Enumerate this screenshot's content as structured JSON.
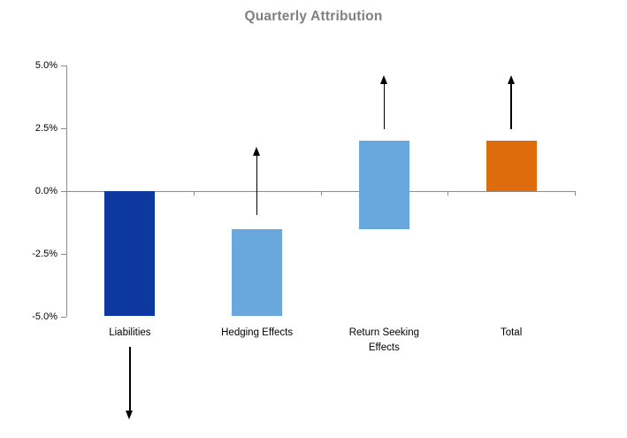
{
  "chart_data": {
    "type": "bar",
    "subtype": "waterfall-attribution",
    "title": "Quarterly Attribution",
    "xlabel": "",
    "ylabel": "",
    "ylim": [
      -5.0,
      5.0
    ],
    "grid": false,
    "legend": "none",
    "y_ticks": [
      {
        "label": "5.0%",
        "value": 5.0
      },
      {
        "label": "2.5%",
        "value": 2.5
      },
      {
        "label": "0.0%",
        "value": 0.0
      },
      {
        "label": "-2.5%",
        "value": -2.5
      },
      {
        "label": "-5.0%",
        "value": -5.0
      }
    ],
    "categories": [
      {
        "label": "Liabilities",
        "label_lines": [
          "Liabilities"
        ],
        "bar": {
          "from": 0.0,
          "to": -4.95,
          "color": "dark_blue",
          "clipped_at_axis_min": true
        },
        "arrow": {
          "dir": "down",
          "from": -6.2,
          "to": -9.1,
          "meaning": "bar continues below axis minimum"
        }
      },
      {
        "label": "Hedging Effects",
        "label_lines": [
          "Hedging Effects"
        ],
        "bar": {
          "from": -4.95,
          "to": -1.5,
          "color": "light_blue",
          "clipped_at_axis_min": true
        },
        "arrow": {
          "dir": "up",
          "from": -0.95,
          "to": 1.75,
          "meaning": "positive (upward) contribution"
        }
      },
      {
        "label": "Return Seeking Effects",
        "label_lines": [
          "Return Seeking",
          "Effects"
        ],
        "bar": {
          "from": -1.5,
          "to": 2.0,
          "color": "light_blue",
          "clipped_at_axis_min": false
        },
        "arrow": {
          "dir": "up",
          "from": 2.45,
          "to": 4.6,
          "meaning": "positive (upward) contribution"
        }
      },
      {
        "label": "Total",
        "label_lines": [
          "Total"
        ],
        "bar": {
          "from": 0.0,
          "to": 2.0,
          "color": "orange",
          "clipped_at_axis_min": false
        },
        "arrow": {
          "dir": "up",
          "from": 2.45,
          "to": 4.6,
          "meaning": "positive (upward) contribution"
        }
      }
    ]
  },
  "colors": {
    "dark_blue": "#0c38a0",
    "light_blue": "#68a8dc",
    "orange": "#de6c0c",
    "axis_gray": "#8c8c8c",
    "title_gray": "#808080",
    "text_black": "#000000",
    "arrow_black": "#000000",
    "background": "#ffffff"
  }
}
